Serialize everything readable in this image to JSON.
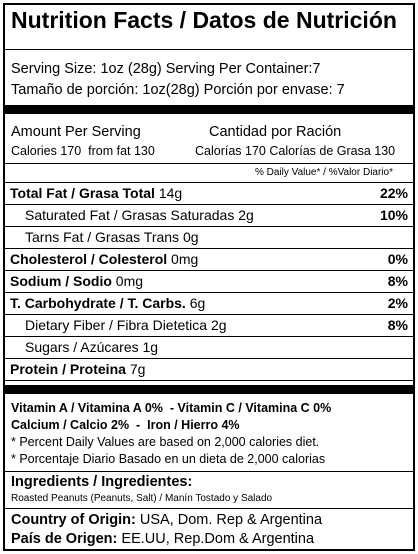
{
  "header": {
    "title": "Nutrition Facts / Datos de Nutrición"
  },
  "serving": {
    "size_en": "Serving Size: 1oz (28g) Serving Per Container:7",
    "size_es": "Tamaño de porción: 1oz(28g) Porción por envase: 7"
  },
  "amount": {
    "label_en": "Amount Per Serving",
    "label_es": "Cantidad por Ración",
    "calories_en": "Calories 170  from fat 130",
    "calories_es": "Calorías 170 Calorías de Grasa 130"
  },
  "daily_value_header": "% Daily Value* / %Valor Diario*",
  "nutrients": [
    {
      "name": "Total Fat / Grasa Total",
      "amount": "14g",
      "dv": "22%"
    },
    {
      "name": "Saturated Fat / Grasas Saturadas",
      "amount": "2g",
      "dv": "10%"
    },
    {
      "name": "Tarns Fat / Grasas Trans",
      "amount": "0g"
    },
    {
      "name": "Cholesterol / Colesterol",
      "amount": "0mg",
      "dv": "0%"
    },
    {
      "name": "Sodium / Sodio",
      "amount": "0mg",
      "dv": "8%"
    },
    {
      "name": "T. Carbohydrate / T. Carbs.",
      "amount": "6g",
      "dv": "2%"
    },
    {
      "name": "Dietary Fiber / Fibra Dietetica",
      "amount": "2g",
      "dv": "8%"
    },
    {
      "name": "Sugars / Azúcares",
      "amount": "1g"
    },
    {
      "name": "Protein / Proteina",
      "amount": "7g"
    }
  ],
  "vitamins": [
    "Vitamin A / Vitamina A 0%  - Vitamin C / Vitamina C 0%",
    "Calcium / Calcio 2%  -  Iron / Hierro 4%"
  ],
  "footnotes": [
    "* Percent Daily Values are based on 2,000 calories diet.",
    "* Porcentaje Diario Basado en un dieta de 2,000 calorias"
  ],
  "ingredients": {
    "title": "Ingredients / Ingredientes:",
    "text": "Roasted Peanuts (Peanuts, Salt) / Manín Tostado y Salado"
  },
  "origin": [
    {
      "label": "Country of Origin:",
      "value": "USA, Dom. Rep & Argentina"
    },
    {
      "label": "País de Origen:",
      "value": "EE.UU, Rep.Dom & Argentina"
    }
  ]
}
